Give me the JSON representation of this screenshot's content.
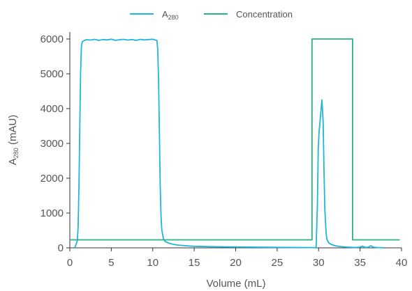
{
  "chart_data": {
    "type": "line",
    "xlabel": "Volume (mL)",
    "ylabel": {
      "main": "A",
      "sub": "280",
      "unit": " (mAU)"
    },
    "xlim": [
      0,
      40
    ],
    "ylim": [
      0,
      6200
    ],
    "xticks": [
      0,
      5,
      10,
      15,
      20,
      25,
      30,
      35,
      40
    ],
    "yticks": [
      0,
      1000,
      2000,
      3000,
      4000,
      5000,
      6000
    ],
    "grid": false,
    "legend_position": "top-center",
    "series": [
      {
        "name": "A",
        "name_sub": "280",
        "color": "#1fb5dd",
        "x": [
          0.6,
          0.9,
          1.0,
          1.1,
          1.2,
          1.3,
          1.4,
          1.5,
          1.7,
          2.0,
          2.5,
          3.0,
          3.5,
          4.0,
          4.5,
          5.0,
          5.5,
          6.0,
          6.5,
          7.0,
          7.5,
          8.0,
          8.5,
          9.0,
          9.5,
          10.0,
          10.3,
          10.5,
          10.6,
          10.7,
          10.8,
          10.9,
          11.0,
          11.1,
          11.3,
          11.5,
          12.0,
          12.5,
          13.0,
          14.0,
          15.0,
          17.0,
          20.0,
          25.0,
          29.0,
          29.7,
          29.85,
          29.95,
          30.05,
          30.2,
          30.4,
          30.55,
          30.65,
          30.75,
          30.9,
          31.0,
          31.2,
          31.5,
          32.0,
          32.5,
          33.5,
          34.5,
          35.0,
          35.3,
          35.6,
          36.0,
          36.3,
          36.6,
          37.0,
          37.8
        ],
        "y": [
          0,
          200,
          600,
          1800,
          3500,
          5000,
          5800,
          5920,
          5950,
          5980,
          5970,
          5990,
          5960,
          5985,
          5975,
          5995,
          5960,
          5980,
          5990,
          5970,
          5985,
          5960,
          5990,
          5975,
          5985,
          5995,
          5970,
          5960,
          5700,
          4800,
          3300,
          1800,
          900,
          500,
          250,
          180,
          130,
          100,
          80,
          60,
          45,
          35,
          25,
          15,
          8,
          5,
          1200,
          2800,
          3300,
          3700,
          4250,
          3600,
          2200,
          1100,
          450,
          250,
          150,
          100,
          60,
          40,
          20,
          10,
          20,
          50,
          15,
          20,
          60,
          20,
          10,
          5
        ]
      },
      {
        "name": "Concentration",
        "color": "#2bb084",
        "x": [
          0,
          29.2,
          29.2,
          34.1,
          34.1,
          39.8
        ],
        "y": [
          230,
          230,
          6000,
          6000,
          230,
          230
        ]
      }
    ]
  }
}
